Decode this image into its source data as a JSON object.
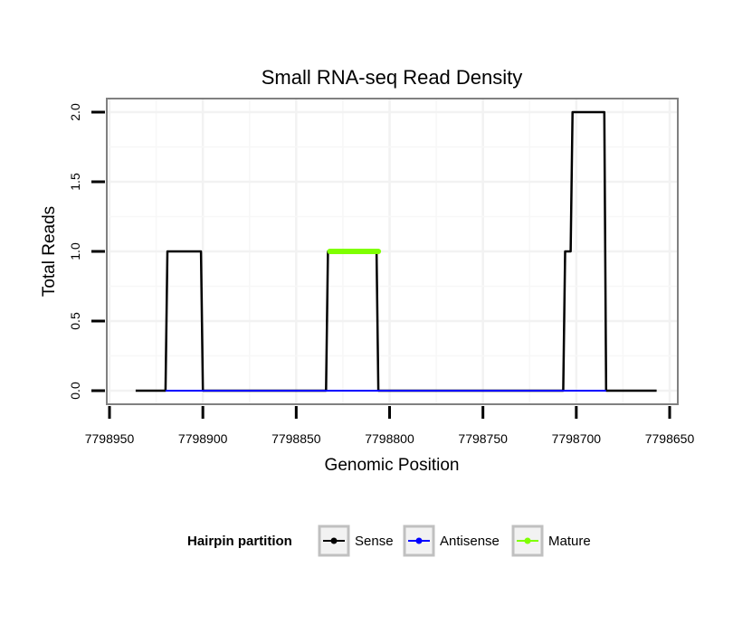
{
  "chart_data": {
    "type": "line",
    "title": "Small RNA-seq Read Density",
    "xlabel": "Genomic Position",
    "ylabel": "Total Reads",
    "x_reversed": true,
    "xlim": [
      7798950,
      7798650
    ],
    "ylim": [
      0.0,
      2.0
    ],
    "x_ticks": [
      7798950,
      7798900,
      7798850,
      7798800,
      7798750,
      7798700,
      7798650
    ],
    "x_tick_labels": [
      "7798950",
      "7798900",
      "7798850",
      "7798800",
      "7798750",
      "7798700",
      "7798650"
    ],
    "y_ticks": [
      0.0,
      0.5,
      1.0,
      1.5,
      2.0
    ],
    "y_tick_labels": [
      "0.0",
      "0.5",
      "1.0",
      "1.5",
      "2.0"
    ],
    "grid": true,
    "legend": {
      "title": "Hairpin partition",
      "position": "bottom",
      "entries": [
        {
          "label": "Sense",
          "color": "#000000"
        },
        {
          "label": "Antisense",
          "color": "#0000ff"
        },
        {
          "label": "Mature",
          "color": "#7fff00"
        }
      ]
    },
    "series": [
      {
        "name": "Sense",
        "color": "#000000",
        "x": [
          7798936,
          7798920,
          7798919,
          7798901,
          7798900,
          7798834,
          7798833,
          7798807,
          7798806,
          7798707,
          7798706,
          7798703,
          7798702,
          7798685,
          7798684,
          7798657
        ],
        "y": [
          0,
          0,
          1,
          1,
          0,
          0,
          1,
          1,
          0,
          0,
          1,
          1,
          2,
          2,
          0,
          0
        ]
      },
      {
        "name": "Antisense",
        "color": "#0000ff",
        "x": [
          7798920,
          7798900,
          7798834,
          7798807,
          7798707,
          7798684
        ],
        "y": [
          0,
          0,
          0,
          0,
          0,
          0
        ]
      },
      {
        "name": "Mature",
        "color": "#7fff00",
        "x": [
          7798832,
          7798806
        ],
        "y": [
          1,
          1
        ]
      }
    ]
  }
}
